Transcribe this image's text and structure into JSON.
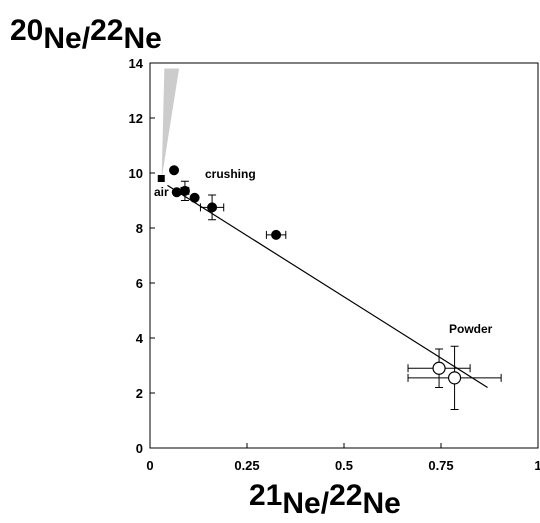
{
  "chart_data": {
    "type": "scatter",
    "ylabel": {
      "sup": "20",
      "sup_suffix": "Ne/",
      "sub": "22",
      "sub_suffix": "Ne"
    },
    "xlabel": {
      "sup": "21",
      "sup_suffix": "Ne/",
      "sub": "22",
      "sub_suffix": "Ne"
    },
    "xlim": [
      0,
      1
    ],
    "ylim": [
      0,
      14
    ],
    "xticks": [
      0,
      0.25,
      0.5,
      0.75,
      1
    ],
    "xtick_labels": [
      "0",
      "0.25",
      "0.5",
      "0.75",
      "1"
    ],
    "yticks": [
      0,
      2,
      4,
      6,
      8,
      10,
      12,
      14
    ],
    "ytick_labels": [
      "0",
      "2",
      "4",
      "6",
      "8",
      "10",
      "12",
      "14"
    ],
    "grid": false,
    "series": [
      {
        "name": "crushing",
        "marker": "filled-circle",
        "points": [
          {
            "x": 0.062,
            "y": 10.1
          },
          {
            "x": 0.069,
            "y": 9.3
          },
          {
            "x": 0.09,
            "y": 9.35,
            "xerr": 0.01,
            "yerr": 0.35
          },
          {
            "x": 0.115,
            "y": 9.1
          },
          {
            "x": 0.16,
            "y": 8.75,
            "xerr": 0.03,
            "yerr": 0.45
          },
          {
            "x": 0.325,
            "y": 7.75,
            "xerr": 0.025,
            "yerr": 0.0
          }
        ]
      },
      {
        "name": "Powder",
        "marker": "open-circle",
        "points": [
          {
            "x": 0.745,
            "y": 2.9,
            "xerr": 0.08,
            "yerr": 0.7
          },
          {
            "x": 0.785,
            "y": 2.55,
            "xerr": 0.12,
            "yerr": 1.15
          }
        ]
      },
      {
        "name": "air",
        "marker": "filled-square",
        "points": [
          {
            "x": 0.029,
            "y": 9.8
          }
        ]
      }
    ],
    "fit_line": {
      "x": [
        0.045,
        0.87
      ],
      "y": [
        9.55,
        2.2
      ]
    },
    "shaded_region": {
      "points": [
        [
          0.03,
          9.8
        ],
        [
          0.037,
          13.8
        ],
        [
          0.075,
          13.8
        ]
      ],
      "color": "#cccccc"
    },
    "annotations": [
      "crushing",
      "air",
      "Powder"
    ]
  }
}
